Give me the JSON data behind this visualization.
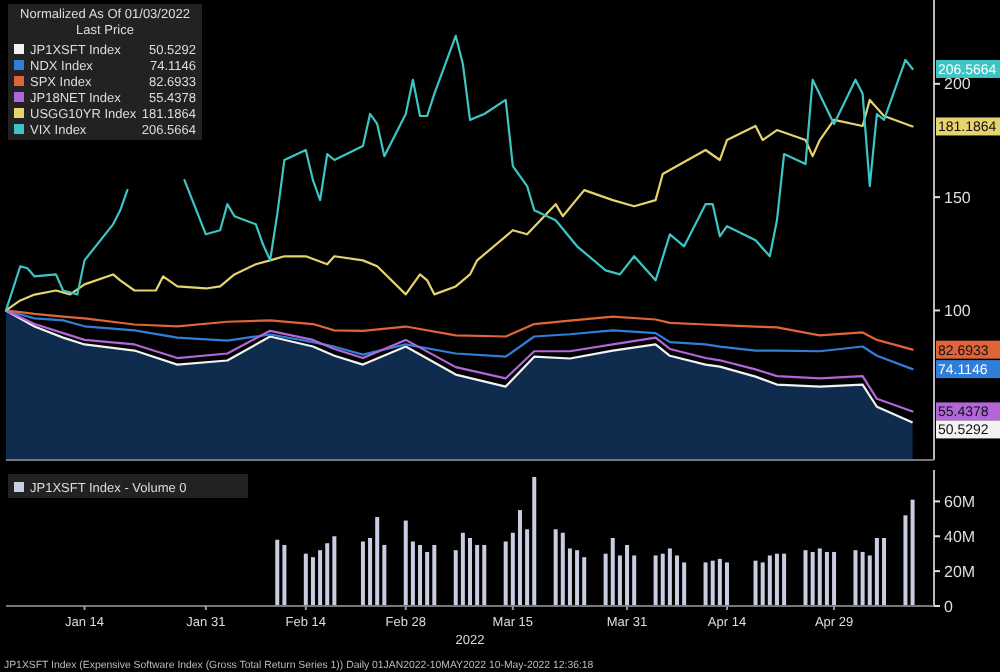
{
  "chart_data": [
    {
      "type": "line",
      "legend_title": "Normalized As Of 01/03/2022",
      "legend": "top left",
      "tick_labels": "y",
      "x": [
        "2022-01-03",
        "2022-01-07",
        "2022-01-11",
        "2022-01-14",
        "2022-01-21",
        "2022-01-27",
        "2022-02-03",
        "2022-02-09",
        "2022-02-15",
        "2022-02-18",
        "2022-02-22",
        "2022-02-28",
        "2022-03-07",
        "2022-03-14",
        "2022-03-18",
        "2022-03-23",
        "2022-03-29",
        "2022-04-04",
        "2022-04-06",
        "2022-04-11",
        "2022-04-13",
        "2022-04-18",
        "2022-04-21",
        "2022-04-27",
        "2022-05-03",
        "2022-05-05",
        "2022-05-10"
      ],
      "xlim": [
        "2022-01-03",
        "2022-05-13"
      ],
      "ylim": [
        34,
        237
      ],
      "yticks": [
        100,
        150,
        200
      ],
      "series": [
        {
          "name": "JP1XSFT Index",
          "type": "area",
          "color": "#f2f2f2",
          "values": [
            100,
            92.9,
            88,
            85,
            82.3,
            76.1,
            77.9,
            88.5,
            84.1,
            80,
            76.1,
            84.1,
            71.7,
            66.4,
            79.6,
            78.8,
            82.3,
            85,
            80,
            76.1,
            75.2,
            70.8,
            67.3,
            66.4,
            67.3,
            57.5,
            50.5292
          ]
        },
        {
          "name": "NDX Index",
          "color": "#2f7fd8",
          "values": [
            100,
            96.5,
            95.6,
            93,
            91.2,
            88,
            86.7,
            89.4,
            86,
            84,
            80.5,
            85,
            81,
            79.6,
            88.5,
            89.5,
            91.2,
            90,
            86,
            85,
            84,
            82.3,
            82.3,
            82,
            84.1,
            80,
            74.1146
          ]
        },
        {
          "name": "SPX Index",
          "color": "#e0643a",
          "values": [
            100,
            98.5,
            97.3,
            96.5,
            93.8,
            93,
            95,
            95.6,
            94,
            91.2,
            91,
            92.9,
            89,
            88.5,
            94,
            95.5,
            97.3,
            96,
            94.5,
            93.8,
            93.5,
            92.9,
            92.5,
            89,
            90.3,
            87,
            82.6933
          ]
        },
        {
          "name": "JP18NET Index",
          "color": "#b266d9",
          "values": [
            100,
            94,
            90,
            87,
            85,
            79,
            81,
            91,
            87,
            83,
            79,
            87,
            75,
            70,
            82,
            82,
            85,
            88,
            83,
            79,
            78,
            74,
            71,
            70,
            71,
            61,
            55.4378
          ]
        },
        {
          "name": "USGG10YR Index",
          "color": "#e6d36e",
          "x": [
            "2022-01-03",
            "2022-01-05",
            "2022-01-07",
            "2022-01-10",
            "2022-01-12",
            "2022-01-14",
            "2022-01-18",
            "2022-01-19",
            "2022-01-21",
            "2022-01-24",
            "2022-01-25",
            "2022-01-27",
            "2022-01-31",
            "2022-02-02",
            "2022-02-04",
            "2022-02-07",
            "2022-02-09",
            "2022-02-11",
            "2022-02-14",
            "2022-02-17",
            "2022-02-18",
            "2022-02-22",
            "2022-02-24",
            "2022-02-28",
            "2022-03-02",
            "2022-03-03",
            "2022-03-04",
            "2022-03-07",
            "2022-03-09",
            "2022-03-10",
            "2022-03-14",
            "2022-03-15",
            "2022-03-17",
            "2022-03-21",
            "2022-03-22",
            "2022-03-25",
            "2022-03-29",
            "2022-04-01",
            "2022-04-04",
            "2022-04-05",
            "2022-04-11",
            "2022-04-13",
            "2022-04-14",
            "2022-04-18",
            "2022-04-19",
            "2022-04-21",
            "2022-04-25",
            "2022-04-26",
            "2022-04-27",
            "2022-04-29",
            "2022-05-03",
            "2022-05-04",
            "2022-05-06",
            "2022-05-10"
          ],
          "values": [
            100,
            104.4,
            107,
            108.8,
            107.1,
            111.5,
            115.9,
            113.3,
            108.8,
            108.8,
            115,
            110.6,
            109.7,
            110.6,
            115.9,
            120.4,
            122.1,
            123.9,
            123.9,
            120.4,
            123.9,
            122.1,
            119.5,
            107.1,
            115.9,
            113.3,
            107.1,
            110.6,
            115.9,
            122.1,
            132.7,
            135.4,
            133.6,
            146.9,
            141.6,
            153.1,
            148.7,
            146,
            148.7,
            160.2,
            170.8,
            166.4,
            175.2,
            181.4,
            175.2,
            179.6,
            175.2,
            168.1,
            175.2,
            184.1,
            181.4,
            192.9,
            185.8,
            181.1864
          ]
        },
        {
          "name": "VIX Index",
          "color": "#3fc4c4",
          "x": [
            "2022-01-03",
            "2022-01-05",
            "2022-01-06",
            "2022-01-07",
            "2022-01-10",
            "2022-01-11",
            "2022-01-13",
            "2022-01-14",
            "2022-01-18",
            "2022-01-19",
            "2022-01-20",
            "2022-01-21",
            "2022-01-24",
            "2022-01-27",
            "2022-01-28",
            "2022-01-31",
            "2022-02-02",
            "2022-02-03",
            "2022-02-04",
            "2022-02-07",
            "2022-02-08",
            "2022-02-09",
            "2022-02-10",
            "2022-02-11",
            "2022-02-14",
            "2022-02-15",
            "2022-02-16",
            "2022-02-17",
            "2022-02-18",
            "2022-02-22",
            "2022-02-23",
            "2022-02-24",
            "2022-02-25",
            "2022-02-28",
            "2022-03-01",
            "2022-03-02",
            "2022-03-03",
            "2022-03-04",
            "2022-03-07",
            "2022-03-08",
            "2022-03-09",
            "2022-03-11",
            "2022-03-14",
            "2022-03-15",
            "2022-03-17",
            "2022-03-18",
            "2022-03-21",
            "2022-03-24",
            "2022-03-28",
            "2022-03-30",
            "2022-04-01",
            "2022-04-04",
            "2022-04-06",
            "2022-04-08",
            "2022-04-11",
            "2022-04-12",
            "2022-04-13",
            "2022-04-14",
            "2022-04-18",
            "2022-04-20",
            "2022-04-21",
            "2022-04-22",
            "2022-04-25",
            "2022-04-26",
            "2022-04-29",
            "2022-05-02",
            "2022-05-03",
            "2022-05-04",
            "2022-05-05",
            "2022-05-06",
            "2022-05-09",
            "2022-05-10"
          ],
          "values": [
            100,
            119.5,
            118.6,
            115,
            115.9,
            108.8,
            107.1,
            122.1,
            138,
            144.2,
            153.1,
            null,
            null,
            null,
            157.5,
            133.6,
            135.4,
            146.9,
            141.6,
            138,
            129.2,
            122.1,
            142.5,
            166.4,
            170.8,
            157.5,
            148.7,
            169,
            166.4,
            172.6,
            186.7,
            182.3,
            168.1,
            186.7,
            201.8,
            185.8,
            185.8,
            195.6,
            221.2,
            208.8,
            184.1,
            186.7,
            192.9,
            163.7,
            154.9,
            144.2,
            139.8,
            128.3,
            117.7,
            115.9,
            123.9,
            113.3,
            133.6,
            128.3,
            146.9,
            146.9,
            132.7,
            137.2,
            131,
            123.9,
            139.8,
            169,
            164.6,
            201.8,
            182.3,
            201.8,
            195.6,
            154.9,
            186.7,
            184.1,
            210.6,
            206.5664
          ]
        }
      ],
      "annotations": [
        "Last Price",
        {
          "text": "50.5292",
          "x": "2022-05-10",
          "y": 50.5292
        },
        {
          "text": "74.1146",
          "x": "2022-05-10",
          "y": 74.1146
        },
        {
          "text": "82.6933",
          "x": "2022-05-10",
          "y": 82.6933
        },
        {
          "text": "55.4378",
          "x": "2022-05-10",
          "y": 55.4378
        },
        {
          "text": "181.1864",
          "x": "2022-05-10",
          "y": 181.1864
        },
        {
          "text": "206.5664",
          "x": "2022-05-10",
          "y": 206.5664
        }
      ]
    },
    {
      "type": "bar",
      "legend": "top left",
      "xlabel": "2022",
      "x": [
        "2022-02-10",
        "2022-02-11",
        "2022-02-14",
        "2022-02-15",
        "2022-02-16",
        "2022-02-17",
        "2022-02-18",
        "2022-02-22",
        "2022-02-23",
        "2022-02-24",
        "2022-02-25",
        "2022-02-28",
        "2022-03-01",
        "2022-03-02",
        "2022-03-03",
        "2022-03-04",
        "2022-03-07",
        "2022-03-08",
        "2022-03-09",
        "2022-03-10",
        "2022-03-11",
        "2022-03-14",
        "2022-03-15",
        "2022-03-16",
        "2022-03-17",
        "2022-03-18",
        "2022-03-21",
        "2022-03-22",
        "2022-03-23",
        "2022-03-24",
        "2022-03-25",
        "2022-03-28",
        "2022-03-29",
        "2022-03-30",
        "2022-03-31",
        "2022-04-01",
        "2022-04-04",
        "2022-04-05",
        "2022-04-06",
        "2022-04-07",
        "2022-04-08",
        "2022-04-11",
        "2022-04-12",
        "2022-04-13",
        "2022-04-14",
        "2022-04-18",
        "2022-04-19",
        "2022-04-20",
        "2022-04-21",
        "2022-04-22",
        "2022-04-25",
        "2022-04-26",
        "2022-04-27",
        "2022-04-28",
        "2022-04-29",
        "2022-05-02",
        "2022-05-03",
        "2022-05-04",
        "2022-05-05",
        "2022-05-06",
        "2022-05-09",
        "2022-05-10"
      ],
      "xlim": [
        "2022-01-03",
        "2022-05-13"
      ],
      "xticks": [
        {
          "value": "2022-01-14",
          "label": "Jan 14"
        },
        {
          "value": "2022-01-31",
          "label": "Jan 31"
        },
        {
          "value": "2022-02-14",
          "label": "Feb 14"
        },
        {
          "value": "2022-02-28",
          "label": "Feb 28"
        },
        {
          "value": "2022-03-15",
          "label": "Mar 15"
        },
        {
          "value": "2022-03-31",
          "label": "Mar 31"
        },
        {
          "value": "2022-04-14",
          "label": "Apr 14"
        },
        {
          "value": "2022-04-29",
          "label": "Apr 29"
        }
      ],
      "ylim": [
        0,
        78
      ],
      "yticks": [
        0,
        {
          "value": 20,
          "label": "20M"
        },
        {
          "value": 40,
          "label": "40M"
        },
        {
          "value": 60,
          "label": "60M"
        }
      ],
      "series": [
        {
          "name": "JP1XSFT Index - Volume 0",
          "color": "#c9cde2",
          "values": [
            38,
            35,
            30,
            28,
            32,
            36,
            40,
            37,
            39,
            51,
            35,
            49,
            37,
            35,
            31,
            35,
            32,
            42,
            39,
            35,
            35,
            37,
            42,
            55,
            44,
            74,
            44,
            42,
            33,
            32,
            28,
            30,
            39,
            29,
            35,
            29,
            29,
            30,
            33,
            29,
            25,
            25,
            26,
            27,
            25,
            26,
            25,
            29,
            30,
            30,
            32,
            31,
            33,
            31,
            31,
            32,
            31,
            29,
            39,
            39,
            52,
            61
          ]
        }
      ],
      "annotations": [
        "JP1XSFT Index (Expensive Software Index (Gross Total Return Series 1)) Daily 01JAN2022-10MAY2022 10-May-2022 12:36:18"
      ]
    }
  ]
}
